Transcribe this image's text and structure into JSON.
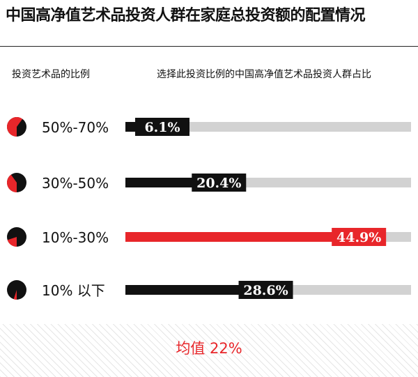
{
  "title": "中国高净值艺术品投资人群在家庭总投资额的配置情况",
  "column_headers": {
    "left": "投资艺术品的比例",
    "right": "选择此投资比例的中国高净值艺术品投资人群占比"
  },
  "average_label": "均值  22%",
  "colors": {
    "black": "#111111",
    "red": "#e8262a",
    "track": "#d2d2d2"
  },
  "chart_data": {
    "type": "bar",
    "categories": [
      "50%-70%",
      "30%-50%",
      "10%-30%",
      "10% 以下"
    ],
    "values": [
      6.1,
      20.4,
      44.9,
      28.6
    ],
    "value_labels": [
      "6.1%",
      "20.4%",
      "44.9%",
      "28.6%"
    ],
    "highlight_index": 2,
    "pie_fractions": [
      0.6,
      0.4,
      0.2,
      0.05
    ],
    "xlim": [
      0,
      100
    ],
    "title": "中国高净值艺术品投资人群在家庭总投资额的配置情况",
    "xlabel": "选择此投资比例的中国高净值艺术品投资人群占比",
    "ylabel": "投资艺术品的比例"
  }
}
